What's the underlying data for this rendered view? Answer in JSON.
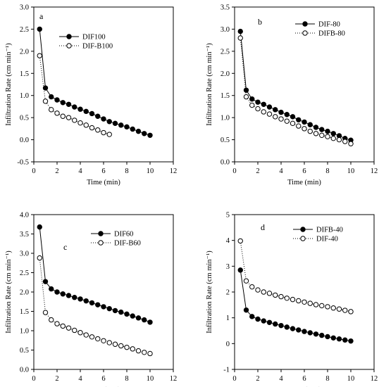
{
  "chart_data": [
    {
      "type": "line",
      "panel_label": "a",
      "xlabel": "Time (min)",
      "ylabel": "Infiltration Rate (cm min⁻¹)",
      "xlim": [
        0,
        12
      ],
      "ylim": [
        -0.5,
        3.0
      ],
      "x_ticks": [
        "0",
        "2",
        "4",
        "6",
        "8",
        "10",
        "12"
      ],
      "y_ticks": [
        "-0.5",
        "0.0",
        "0.5",
        "1.0",
        "1.5",
        "2.0",
        "2.5",
        "3.0"
      ],
      "grid": false,
      "legend_position": "top-right",
      "series": [
        {
          "name": "DIF100",
          "marker": "filled-circle",
          "line": "solid",
          "x": [
            0.5,
            1,
            1.5,
            2,
            2.5,
            3,
            3.5,
            4,
            4.5,
            5,
            5.5,
            6,
            6.5,
            7,
            7.5,
            8,
            8.5,
            9,
            9.5,
            10
          ],
          "y": [
            2.5,
            1.17,
            0.97,
            0.9,
            0.84,
            0.8,
            0.74,
            0.69,
            0.64,
            0.59,
            0.53,
            0.47,
            0.41,
            0.37,
            0.33,
            0.29,
            0.24,
            0.19,
            0.14,
            0.1
          ]
        },
        {
          "name": "DIF-B100",
          "marker": "open-circle",
          "line": "dotted",
          "x": [
            0.5,
            1,
            1.5,
            2,
            2.5,
            3,
            3.5,
            4,
            4.5,
            5,
            5.5,
            6,
            6.5
          ],
          "y": [
            1.9,
            0.87,
            0.68,
            0.6,
            0.53,
            0.5,
            0.44,
            0.38,
            0.33,
            0.27,
            0.22,
            0.16,
            0.12
          ]
        }
      ]
    },
    {
      "type": "line",
      "panel_label": "b",
      "xlabel": "Time (min)",
      "ylabel": "Infiltration Rate (cm min⁻¹)",
      "xlim": [
        0,
        12
      ],
      "ylim": [
        0,
        3.5
      ],
      "x_ticks": [
        "0",
        "2",
        "4",
        "6",
        "8",
        "10",
        "12"
      ],
      "y_ticks": [
        "0.0",
        "0.5",
        "1.0",
        "1.5",
        "2.0",
        "2.5",
        "3.0",
        "3.5"
      ],
      "grid": false,
      "legend_position": "top-right",
      "series": [
        {
          "name": "DIF-80",
          "marker": "filled-circle",
          "line": "solid",
          "x": [
            0.5,
            1,
            1.5,
            2,
            2.5,
            3,
            3.5,
            4,
            4.5,
            5,
            5.5,
            6,
            6.5,
            7,
            7.5,
            8,
            8.5,
            9,
            9.5,
            10
          ],
          "y": [
            2.95,
            1.62,
            1.42,
            1.35,
            1.3,
            1.24,
            1.18,
            1.12,
            1.07,
            1.02,
            0.95,
            0.9,
            0.84,
            0.78,
            0.73,
            0.69,
            0.64,
            0.59,
            0.53,
            0.49
          ]
        },
        {
          "name": "DIFB-80",
          "marker": "open-circle",
          "line": "dotted",
          "x": [
            0.5,
            1,
            1.5,
            2,
            2.5,
            3,
            3.5,
            4,
            4.5,
            5,
            5.5,
            6,
            6.5,
            7,
            7.5,
            8,
            8.5,
            9,
            9.5,
            10
          ],
          "y": [
            2.8,
            1.47,
            1.28,
            1.2,
            1.13,
            1.08,
            1.02,
            0.97,
            0.92,
            0.87,
            0.81,
            0.75,
            0.69,
            0.64,
            0.6,
            0.57,
            0.53,
            0.5,
            0.46,
            0.41
          ]
        }
      ]
    },
    {
      "type": "line",
      "panel_label": "c",
      "xlabel": "Time (min)",
      "ylabel": "Infiltration Rate (cm min⁻¹)",
      "xlim": [
        0,
        12
      ],
      "ylim": [
        0,
        4.0
      ],
      "x_ticks": [
        "0",
        "2",
        "4",
        "6",
        "8",
        "10",
        "12"
      ],
      "y_ticks": [
        "0.0",
        "0.5",
        "1.0",
        "1.5",
        "2.0",
        "2.5",
        "3.0",
        "3.5",
        "4.0"
      ],
      "grid": false,
      "legend_position": "top-right",
      "series": [
        {
          "name": "DIF60",
          "marker": "filled-circle",
          "line": "solid",
          "x": [
            0.5,
            1,
            1.5,
            2,
            2.5,
            3,
            3.5,
            4,
            4.5,
            5,
            5.5,
            6,
            6.5,
            7,
            7.5,
            8,
            8.5,
            9,
            9.5,
            10
          ],
          "y": [
            3.68,
            2.27,
            2.08,
            2.0,
            1.95,
            1.91,
            1.86,
            1.82,
            1.77,
            1.72,
            1.67,
            1.62,
            1.57,
            1.52,
            1.48,
            1.43,
            1.38,
            1.33,
            1.28,
            1.22
          ]
        },
        {
          "name": "DIF-B60",
          "marker": "open-circle",
          "line": "dotted",
          "x": [
            0.5,
            1,
            1.5,
            2,
            2.5,
            3,
            3.5,
            4,
            4.5,
            5,
            5.5,
            6,
            6.5,
            7,
            7.5,
            8,
            8.5,
            9,
            9.5,
            10
          ],
          "y": [
            2.88,
            1.47,
            1.28,
            1.18,
            1.12,
            1.07,
            1.01,
            0.95,
            0.89,
            0.84,
            0.79,
            0.74,
            0.69,
            0.65,
            0.61,
            0.57,
            0.53,
            0.48,
            0.44,
            0.41
          ]
        }
      ]
    },
    {
      "type": "line",
      "panel_label": "d",
      "xlabel": "Time (min)",
      "ylabel": "Infiltration Rate (cm min⁻¹)",
      "xlim": [
        0,
        12
      ],
      "ylim": [
        -1,
        5
      ],
      "x_ticks": [
        "0",
        "2",
        "4",
        "6",
        "8",
        "10",
        "12"
      ],
      "y_ticks": [
        "-1",
        "0",
        "1",
        "2",
        "3",
        "4",
        "5"
      ],
      "grid": false,
      "legend_position": "top-right",
      "series": [
        {
          "name": "DIFB-40",
          "marker": "filled-circle",
          "line": "solid",
          "x": [
            0.5,
            1,
            1.5,
            2,
            2.5,
            3,
            3.5,
            4,
            4.5,
            5,
            5.5,
            6,
            6.5,
            7,
            7.5,
            8,
            8.5,
            9,
            9.5,
            10
          ],
          "y": [
            2.85,
            1.3,
            1.05,
            0.95,
            0.88,
            0.82,
            0.76,
            0.7,
            0.64,
            0.58,
            0.53,
            0.47,
            0.42,
            0.37,
            0.32,
            0.27,
            0.22,
            0.18,
            0.14,
            0.1
          ]
        },
        {
          "name": "DIF-40",
          "marker": "open-circle",
          "line": "dotted",
          "x": [
            0.5,
            1,
            1.5,
            2,
            2.5,
            3,
            3.5,
            4,
            4.5,
            5,
            5.5,
            6,
            6.5,
            7,
            7.5,
            8,
            8.5,
            9,
            9.5,
            10
          ],
          "y": [
            3.98,
            2.43,
            2.2,
            2.08,
            2.0,
            1.95,
            1.88,
            1.82,
            1.76,
            1.71,
            1.66,
            1.61,
            1.56,
            1.51,
            1.47,
            1.43,
            1.38,
            1.34,
            1.29,
            1.24
          ]
        }
      ]
    }
  ]
}
